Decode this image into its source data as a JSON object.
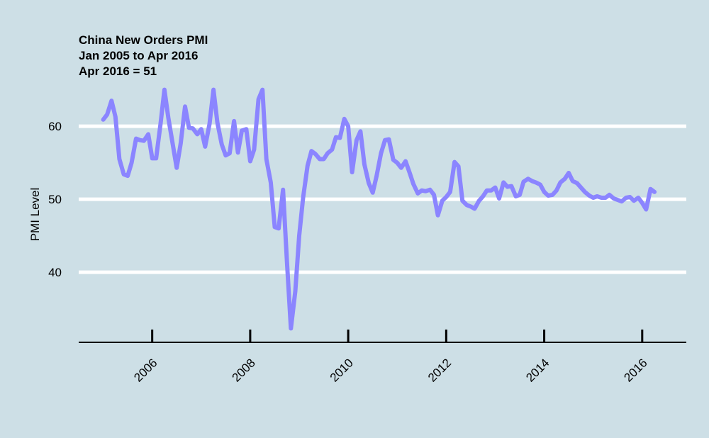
{
  "chart_data": {
    "type": "line",
    "title": "China New Orders PMI",
    "subtitle": "Jan 2005 to Apr 2016",
    "annotation": "Apr 2016 = 51",
    "xlabel": "",
    "ylabel": "PMI Level",
    "xlim": [
      2004.5,
      2016.9
    ],
    "ylim": [
      30.4,
      67
    ],
    "xticks": [
      2006,
      2008,
      2010,
      2012,
      2014,
      2016
    ],
    "xtick_labels": [
      "2006",
      "2008",
      "2010",
      "2012",
      "2014",
      "2016"
    ],
    "yticks": [
      40,
      50,
      60
    ],
    "ytick_labels": [
      "40",
      "50",
      "60"
    ],
    "grid": "horizontal",
    "legend": "none",
    "line_color": "#8b85ff",
    "background": "#cddfe6",
    "series": [
      {
        "points": [
          [
            2005.0,
            60.9
          ],
          [
            2005.08,
            61.6
          ],
          [
            2005.17,
            63.5
          ],
          [
            2005.25,
            61.3
          ],
          [
            2005.33,
            55.5
          ],
          [
            2005.42,
            53.4
          ],
          [
            2005.5,
            53.2
          ],
          [
            2005.58,
            55.0
          ],
          [
            2005.67,
            58.3
          ],
          [
            2005.75,
            58.1
          ],
          [
            2005.83,
            58.0
          ],
          [
            2005.92,
            58.9
          ],
          [
            2006.0,
            55.6
          ],
          [
            2006.08,
            55.6
          ],
          [
            2006.17,
            60.3
          ],
          [
            2006.25,
            65.0
          ],
          [
            2006.33,
            61.1
          ],
          [
            2006.42,
            57.5
          ],
          [
            2006.5,
            54.3
          ],
          [
            2006.58,
            57.6
          ],
          [
            2006.67,
            62.7
          ],
          [
            2006.75,
            59.8
          ],
          [
            2006.83,
            59.7
          ],
          [
            2006.92,
            58.9
          ],
          [
            2007.0,
            59.6
          ],
          [
            2007.08,
            57.2
          ],
          [
            2007.17,
            60.3
          ],
          [
            2007.25,
            65.0
          ],
          [
            2007.33,
            60.5
          ],
          [
            2007.42,
            57.5
          ],
          [
            2007.5,
            56.0
          ],
          [
            2007.58,
            56.3
          ],
          [
            2007.67,
            60.7
          ],
          [
            2007.75,
            56.4
          ],
          [
            2007.83,
            59.4
          ],
          [
            2007.92,
            59.6
          ],
          [
            2008.0,
            55.2
          ],
          [
            2008.08,
            56.8
          ],
          [
            2008.17,
            63.7
          ],
          [
            2008.25,
            65.0
          ],
          [
            2008.33,
            55.5
          ],
          [
            2008.42,
            52.3
          ],
          [
            2008.5,
            46.2
          ],
          [
            2008.58,
            46.0
          ],
          [
            2008.67,
            51.3
          ],
          [
            2008.75,
            41.5
          ],
          [
            2008.83,
            32.3
          ],
          [
            2008.92,
            37.4
          ],
          [
            2009.0,
            45.0
          ],
          [
            2009.08,
            50.2
          ],
          [
            2009.17,
            54.6
          ],
          [
            2009.25,
            56.6
          ],
          [
            2009.33,
            56.2
          ],
          [
            2009.42,
            55.5
          ],
          [
            2009.5,
            55.5
          ],
          [
            2009.58,
            56.3
          ],
          [
            2009.67,
            56.8
          ],
          [
            2009.75,
            58.5
          ],
          [
            2009.83,
            58.4
          ],
          [
            2009.92,
            61.0
          ],
          [
            2010.0,
            60.0
          ],
          [
            2010.08,
            53.7
          ],
          [
            2010.17,
            58.1
          ],
          [
            2010.25,
            59.3
          ],
          [
            2010.33,
            54.8
          ],
          [
            2010.42,
            52.2
          ],
          [
            2010.5,
            50.9
          ],
          [
            2010.58,
            53.2
          ],
          [
            2010.67,
            56.3
          ],
          [
            2010.75,
            58.1
          ],
          [
            2010.83,
            58.2
          ],
          [
            2010.92,
            55.4
          ],
          [
            2011.0,
            55.0
          ],
          [
            2011.08,
            54.3
          ],
          [
            2011.17,
            55.2
          ],
          [
            2011.25,
            53.7
          ],
          [
            2011.33,
            52.1
          ],
          [
            2011.42,
            50.8
          ],
          [
            2011.5,
            51.2
          ],
          [
            2011.58,
            51.1
          ],
          [
            2011.67,
            51.3
          ],
          [
            2011.75,
            50.6
          ],
          [
            2011.83,
            47.8
          ],
          [
            2011.92,
            49.8
          ],
          [
            2012.0,
            50.3
          ],
          [
            2012.08,
            51.0
          ],
          [
            2012.17,
            55.1
          ],
          [
            2012.25,
            54.5
          ],
          [
            2012.33,
            49.8
          ],
          [
            2012.42,
            49.2
          ],
          [
            2012.5,
            49.0
          ],
          [
            2012.58,
            48.7
          ],
          [
            2012.67,
            49.8
          ],
          [
            2012.75,
            50.4
          ],
          [
            2012.83,
            51.2
          ],
          [
            2012.92,
            51.2
          ],
          [
            2013.0,
            51.6
          ],
          [
            2013.08,
            50.1
          ],
          [
            2013.17,
            52.3
          ],
          [
            2013.25,
            51.7
          ],
          [
            2013.33,
            51.8
          ],
          [
            2013.42,
            50.4
          ],
          [
            2013.5,
            50.6
          ],
          [
            2013.58,
            52.4
          ],
          [
            2013.67,
            52.8
          ],
          [
            2013.75,
            52.5
          ],
          [
            2013.83,
            52.3
          ],
          [
            2013.92,
            52.0
          ],
          [
            2014.0,
            51.0
          ],
          [
            2014.08,
            50.5
          ],
          [
            2014.17,
            50.6
          ],
          [
            2014.25,
            51.2
          ],
          [
            2014.33,
            52.3
          ],
          [
            2014.42,
            52.8
          ],
          [
            2014.5,
            53.6
          ],
          [
            2014.58,
            52.5
          ],
          [
            2014.67,
            52.2
          ],
          [
            2014.75,
            51.6
          ],
          [
            2014.83,
            51.0
          ],
          [
            2014.92,
            50.5
          ],
          [
            2015.0,
            50.2
          ],
          [
            2015.08,
            50.4
          ],
          [
            2015.17,
            50.2
          ],
          [
            2015.25,
            50.2
          ],
          [
            2015.33,
            50.6
          ],
          [
            2015.42,
            50.1
          ],
          [
            2015.5,
            49.9
          ],
          [
            2015.58,
            49.7
          ],
          [
            2015.67,
            50.2
          ],
          [
            2015.75,
            50.3
          ],
          [
            2015.83,
            49.8
          ],
          [
            2015.92,
            50.2
          ],
          [
            2016.0,
            49.5
          ],
          [
            2016.08,
            48.6
          ],
          [
            2016.17,
            51.4
          ],
          [
            2016.25,
            51.0
          ]
        ]
      }
    ]
  }
}
